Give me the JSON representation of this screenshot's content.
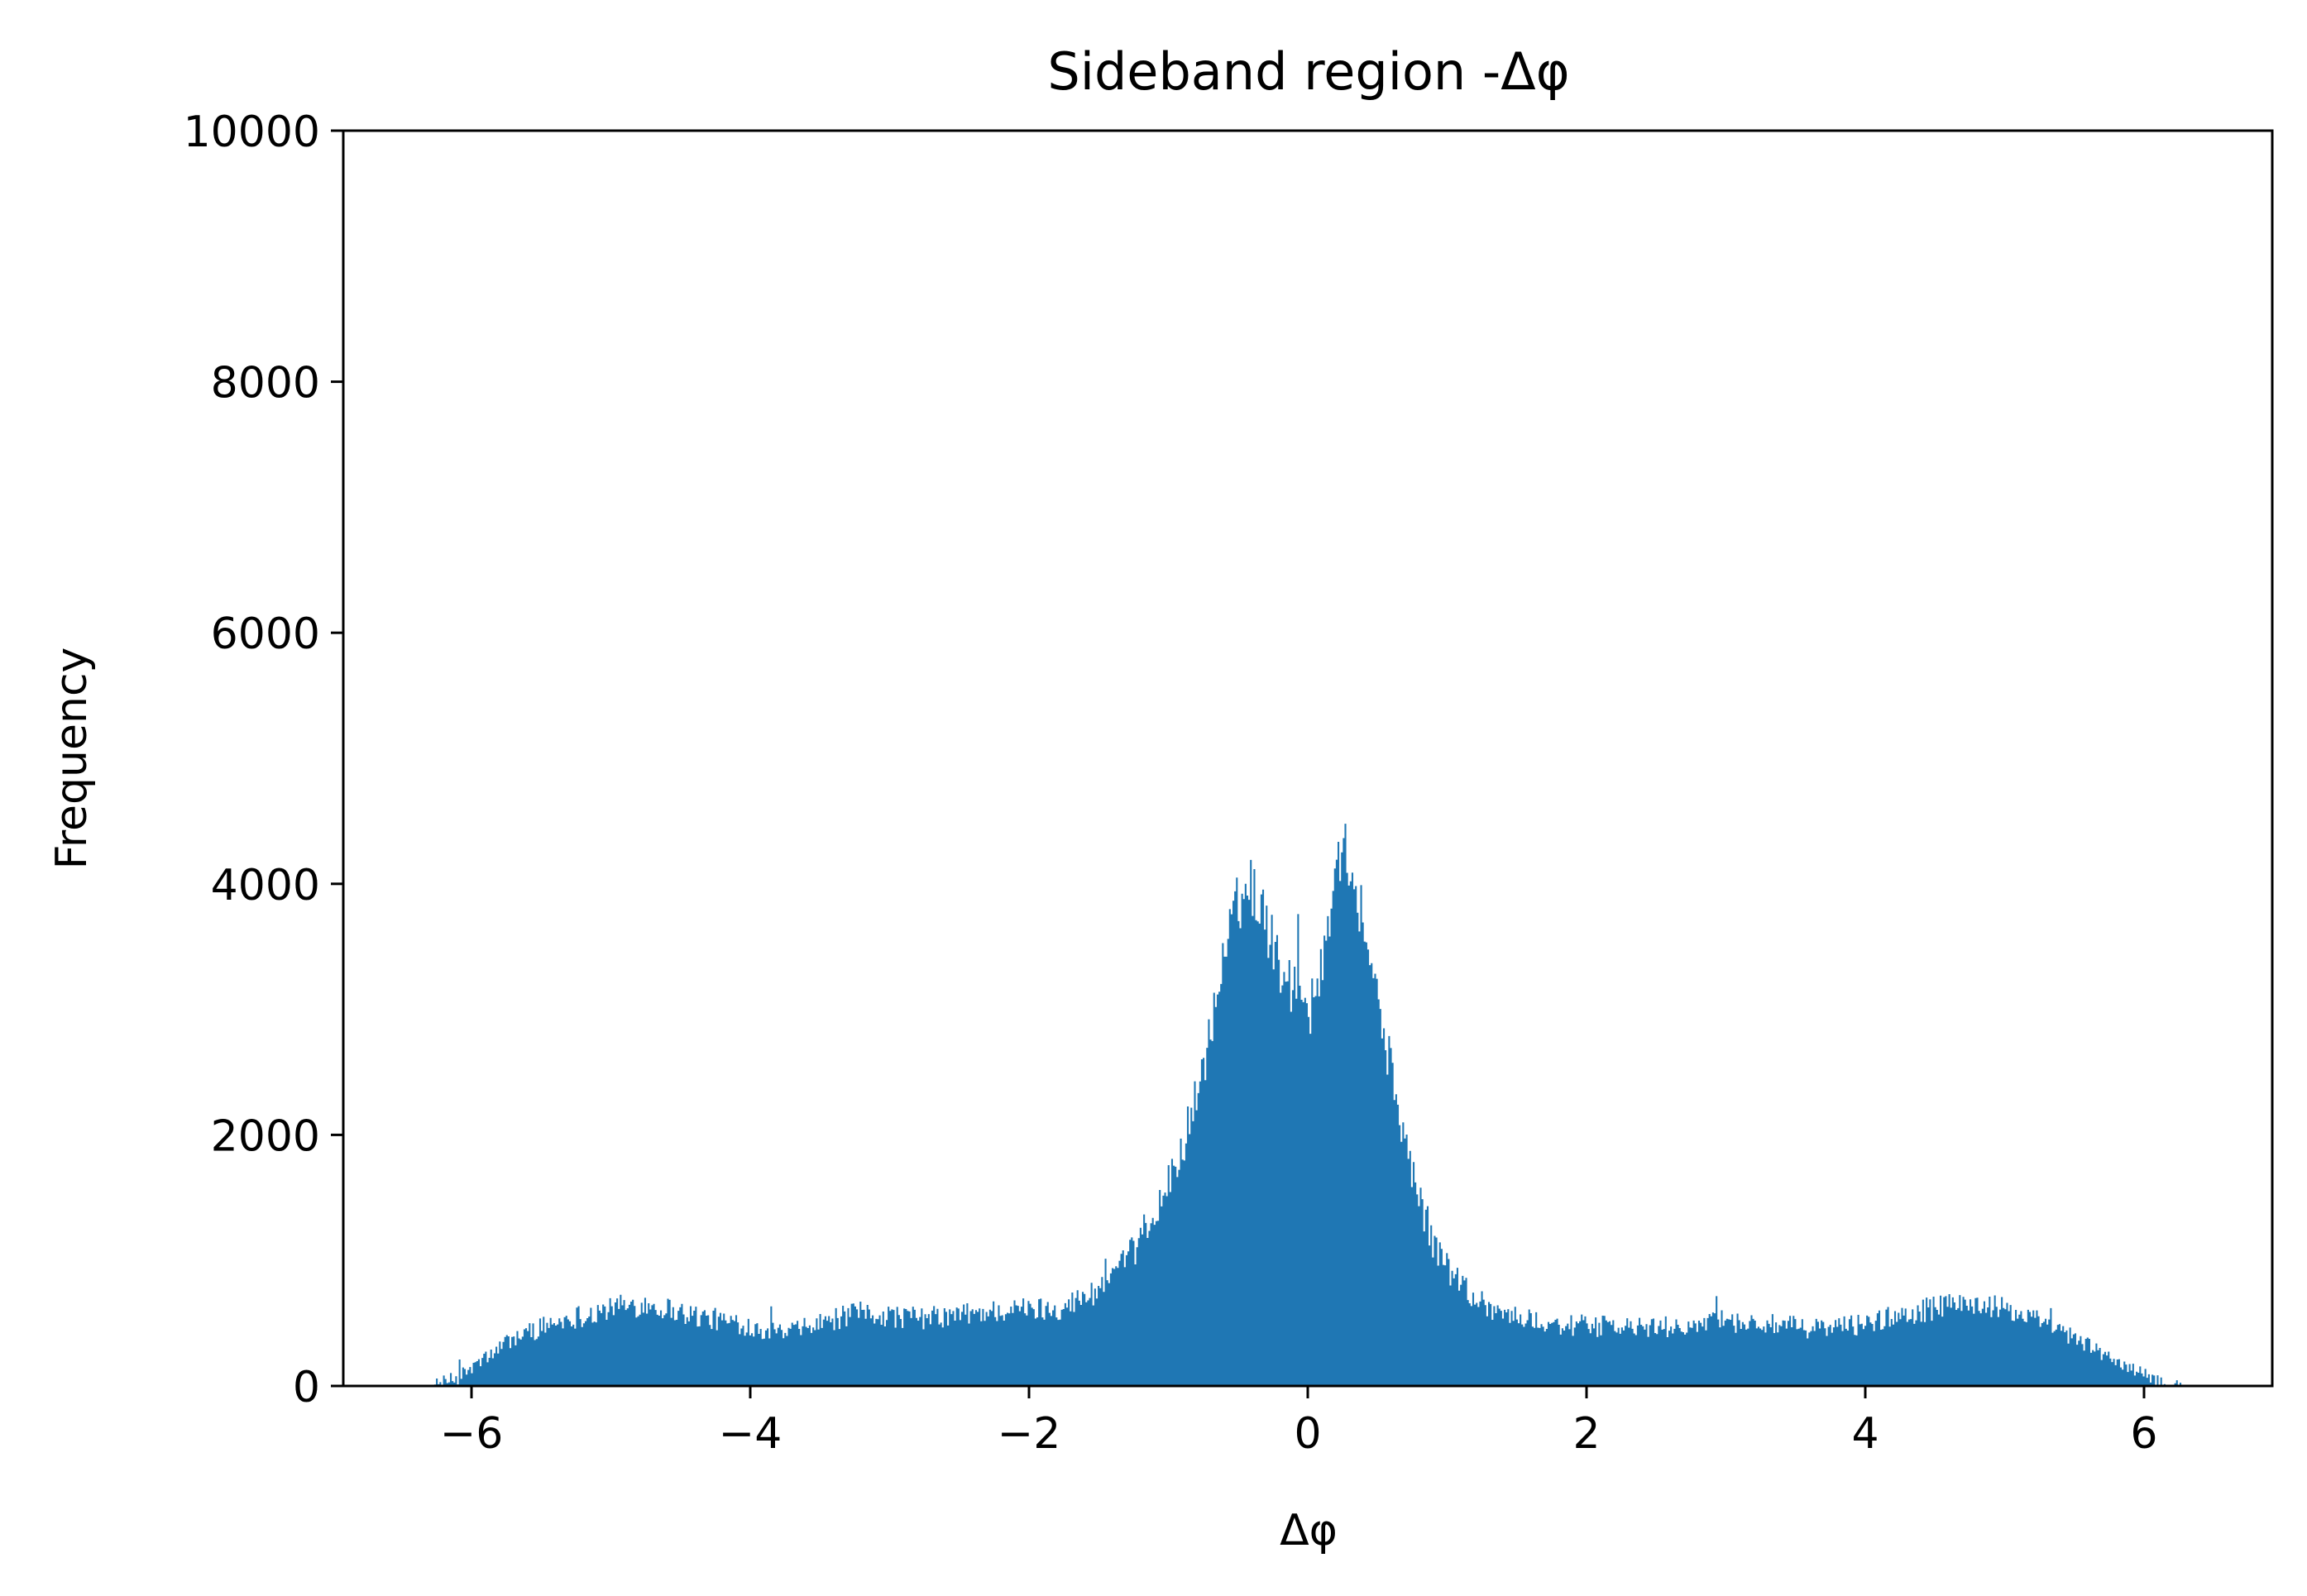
{
  "chart_data": {
    "type": "bar",
    "subtype": "histogram",
    "title": "Sideband region -Δφ",
    "xlabel": "Δφ",
    "ylabel": "Frequency",
    "xlim": [
      -6.92,
      6.92
    ],
    "ylim": [
      0,
      10000
    ],
    "xticks": [
      -6,
      -4,
      -2,
      0,
      2,
      4,
      6
    ],
    "xtick_labels": [
      "−6",
      "−4",
      "−2",
      "0",
      "2",
      "4",
      "6"
    ],
    "yticks": [
      0,
      2000,
      4000,
      6000,
      8000,
      10000
    ],
    "ytick_labels": [
      "0",
      "2000",
      "4000",
      "6000",
      "8000",
      "10000"
    ],
    "grid": false,
    "bar_color": "#1f77b4",
    "bin_range": [
      -6.28,
      6.28
    ],
    "series": [
      {
        "x": [
          -6.28,
          -6.1,
          -5.9,
          -5.7,
          -5.5,
          -5.3,
          -5.1,
          -4.9,
          -4.75,
          -4.6,
          -4.4,
          -4.2,
          -4.0,
          -3.85,
          -3.75,
          -3.6,
          -3.4,
          -3.2,
          -3.0,
          -2.8,
          -2.6,
          -2.4,
          -2.2,
          -2.0,
          -1.8,
          -1.6,
          -1.4,
          -1.3,
          -1.2,
          -1.1,
          -1.0,
          -0.9,
          -0.8,
          -0.7,
          -0.6,
          -0.5,
          -0.4,
          -0.3,
          -0.2,
          -0.15,
          -0.1,
          -0.05,
          0.0,
          0.05,
          0.1,
          0.15,
          0.2,
          0.3,
          0.4,
          0.5,
          0.6,
          0.7,
          0.8,
          0.9,
          1.0,
          1.2,
          1.4,
          1.6,
          1.8,
          2.0,
          2.2,
          2.4,
          2.6,
          2.8,
          3.0,
          3.2,
          3.4,
          3.6,
          3.8,
          4.0,
          4.2,
          4.4,
          4.6,
          4.8,
          5.0,
          5.2,
          5.4,
          5.6,
          5.8,
          6.0,
          6.15,
          6.28
        ],
        "y": [
          0,
          60,
          220,
          380,
          470,
          540,
          590,
          640,
          650,
          620,
          560,
          520,
          480,
          440,
          420,
          460,
          530,
          580,
          560,
          540,
          550,
          580,
          600,
          610,
          620,
          700,
          850,
          1000,
          1150,
          1350,
          1600,
          1900,
          2300,
          2800,
          3400,
          3850,
          4000,
          3700,
          3350,
          3200,
          3150,
          3000,
          2950,
          3100,
          3300,
          3650,
          4300,
          4200,
          3700,
          3100,
          2500,
          1950,
          1500,
          1150,
          950,
          700,
          580,
          520,
          490,
          480,
          470,
          460,
          470,
          490,
          510,
          500,
          480,
          460,
          470,
          500,
          550,
          600,
          640,
          660,
          610,
          530,
          430,
          320,
          200,
          80,
          20,
          0
        ]
      }
    ]
  }
}
